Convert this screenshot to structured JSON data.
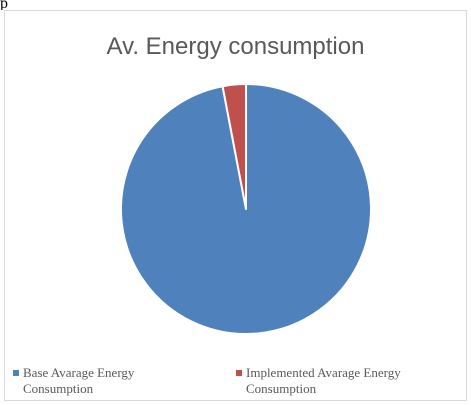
{
  "page_fragment": "p",
  "chart_data": {
    "type": "pie",
    "title": "Av. Energy consumption",
    "categories": [
      "Base Avarage Energy Consumption",
      "Implemented Avarage Energy Consumption"
    ],
    "values": [
      97,
      3
    ],
    "colors": [
      "#4f81bd",
      "#c0504d"
    ],
    "legend_position": "bottom",
    "legend": [
      {
        "line1": "Base Avarage Energy",
        "line2": "Consumption",
        "color": "#4f81bd"
      },
      {
        "line1": "Implemented Avarage Energy",
        "line2": "Consumption",
        "color": "#c0504d"
      }
    ]
  }
}
